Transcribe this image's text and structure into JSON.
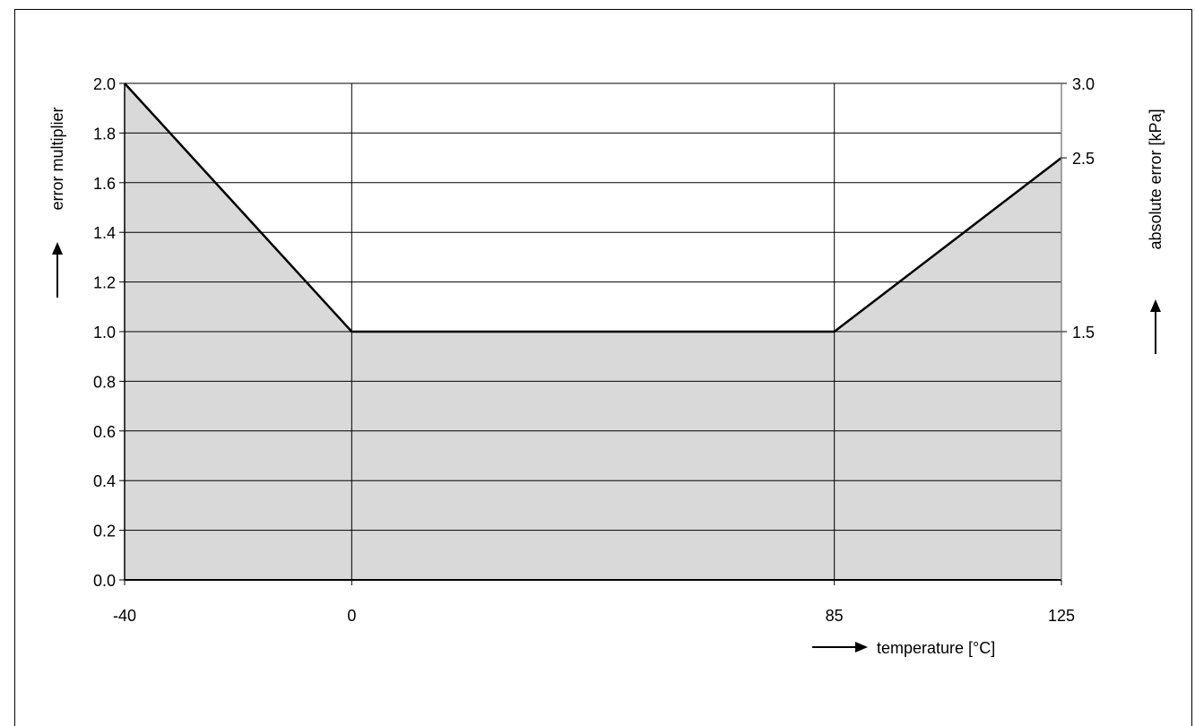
{
  "chart_data": {
    "type": "area",
    "title": "",
    "xlabel": "temperature  [°C]",
    "ylabel": "error multiplier",
    "ylabel_right": "absolute error [kPa]",
    "x_ticks": [
      -40,
      0,
      85,
      125
    ],
    "x_tick_labels": [
      "-40",
      "0",
      "85",
      "125"
    ],
    "y_ticks": [
      0.0,
      0.2,
      0.4,
      0.6,
      0.8,
      1.0,
      1.2,
      1.4,
      1.6,
      1.8,
      2.0
    ],
    "y_tick_labels": [
      "0.0",
      "0.2",
      "0.4",
      "0.6",
      "0.8",
      "1.0",
      "1.2",
      "1.4",
      "1.6",
      "1.8",
      "2.0"
    ],
    "y_right_ticks": [
      {
        "at": 1.0,
        "label": "1.5"
      },
      {
        "at": 1.7,
        "label": "2.5"
      },
      {
        "at": 2.0,
        "label": "3.0"
      }
    ],
    "xlim": [
      -40,
      125
    ],
    "ylim": [
      0,
      2.0
    ],
    "grid": true,
    "x": [
      -40,
      0,
      85,
      125
    ],
    "y": [
      2.0,
      1.0,
      1.0,
      1.7
    ],
    "fill_color": "#d9d9d9",
    "line_color": "#000000"
  }
}
